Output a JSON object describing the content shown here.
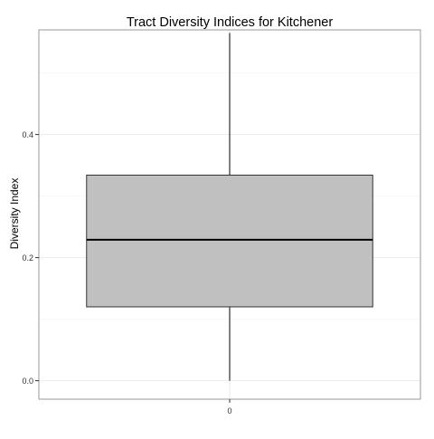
{
  "chart_data": {
    "type": "boxplot",
    "title": "Tract Diversity Indices for Kitchener",
    "xlabel": "",
    "ylabel": "Diversity Index",
    "categories": [
      "0"
    ],
    "boxes": [
      {
        "category": "0",
        "min": 0.0,
        "q1": 0.12,
        "median": 0.229,
        "q3": 0.334,
        "max": 0.565
      }
    ],
    "ylim": [
      -0.03,
      0.57
    ],
    "yticks": [
      0.0,
      0.2,
      0.4
    ],
    "ytick_labels": [
      "0.0",
      "0.2",
      "0.4"
    ],
    "y_minor_gridlines": [
      0.1,
      0.3,
      0.5
    ],
    "grid": true,
    "legend": "none",
    "colors": {
      "box_fill": "#c0c0c0",
      "box_stroke": "#333333",
      "grid_major": "#ebebeb",
      "grid_minor": "#f5f5f5",
      "panel_border": "#999999"
    }
  }
}
